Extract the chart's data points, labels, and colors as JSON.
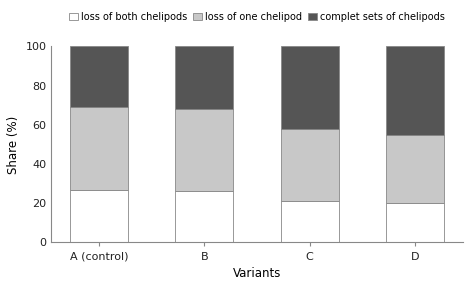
{
  "categories": [
    "A (control)",
    "B",
    "C",
    "D"
  ],
  "xlabel": "Variants",
  "ylabel": "Share (%)",
  "ylim": [
    0,
    100
  ],
  "yticks": [
    0,
    20,
    40,
    60,
    80,
    100
  ],
  "series": [
    {
      "label": "loss of both chelipods",
      "values": [
        27,
        26,
        21,
        20
      ],
      "color": "#ffffff",
      "edgecolor": "#888888"
    },
    {
      "label": "loss of one chelipod",
      "values": [
        42,
        42,
        37,
        35
      ],
      "color": "#c8c8c8",
      "edgecolor": "#888888"
    },
    {
      "label": "complet sets of chelipods",
      "values": [
        31,
        32,
        42,
        45
      ],
      "color": "#555555",
      "edgecolor": "#888888"
    }
  ],
  "bar_width": 0.55,
  "legend_fontsize": 7.0,
  "axis_fontsize": 8.5,
  "tick_fontsize": 8.0,
  "background_color": "#ffffff"
}
